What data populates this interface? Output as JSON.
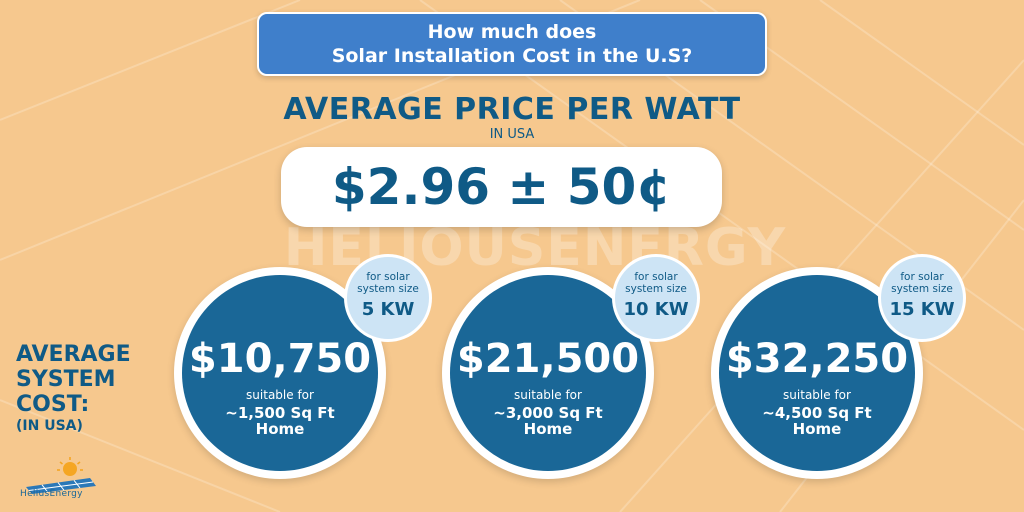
{
  "header": {
    "title_line1": "How much does",
    "title_line2": "Solar Installation Cost in the U.S?"
  },
  "headline": {
    "title": "AVERAGE PRICE PER WATT",
    "subtitle": "IN USA",
    "price": "$2.96 ± 50¢"
  },
  "watermark": "HELIOUSENERGY",
  "side_label": {
    "line1": "AVERAGE",
    "line2": "SYSTEM",
    "line3": "COST:",
    "line4": "(IN USA)"
  },
  "costs": [
    {
      "badge_line1": "for solar",
      "badge_line2": "system size",
      "size": "5 KW",
      "amount": "$10,750",
      "suitable": "suitable for",
      "home_line1": "~1,500 Sq Ft",
      "home_line2": "Home"
    },
    {
      "badge_line1": "for solar",
      "badge_line2": "system size",
      "size": "10 KW",
      "amount": "$21,500",
      "suitable": "suitable for",
      "home_line1": "~3,000 Sq Ft",
      "home_line2": "Home"
    },
    {
      "badge_line1": "for solar",
      "badge_line2": "system size",
      "size": "15 KW",
      "amount": "$32,250",
      "suitable": "suitable for",
      "home_line1": "~4,500 Sq Ft",
      "home_line2": "Home"
    }
  ],
  "logo": {
    "icon": "solar-panel-sun-icon",
    "text": "HeliusEnergy"
  },
  "colors": {
    "background": "#f6c88e",
    "primary_blue": "#0f5a86",
    "circle_blue": "#1a6797",
    "title_blue": "#3f7fcb",
    "badge_light": "#cde4f5"
  }
}
